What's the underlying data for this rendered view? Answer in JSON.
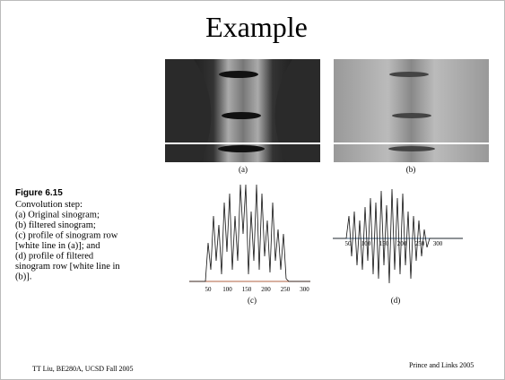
{
  "title": "Example",
  "figure": {
    "label": "Figure 6.15",
    "caption": [
      "Convolution step:",
      "(a) Original sinogram;",
      "(b) filtered sinogram;",
      "(c) profile of sinogram row",
      "[white line in (a)]; and",
      "(d) profile of filtered",
      "sinogram row [white line in",
      "(b)]."
    ]
  },
  "panels": [
    "(a)",
    "(b)",
    "(c)",
    "(d)"
  ],
  "plot_c": {
    "xticks": [
      50,
      100,
      150,
      200,
      250,
      300
    ]
  },
  "plot_d": {
    "xticks": [
      50,
      100,
      150,
      200,
      250,
      300
    ]
  },
  "footer": {
    "left": "TT Liu, BE280A, UCSD Fall 2005",
    "right": "Prince and Links 2005"
  }
}
